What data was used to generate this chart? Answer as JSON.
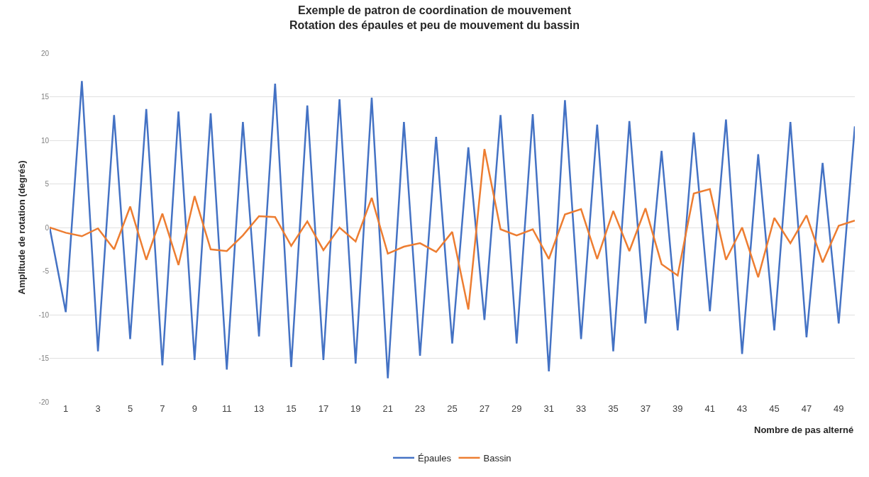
{
  "chart_data": {
    "type": "line",
    "title": "Exemple de patron de coordination de mouvement",
    "subtitle": "Rotation des épaules et peu de mouvement du bassin",
    "xlabel": "Nombre de pas alterné",
    "ylabel": "Amplitude de rotation (degrés)",
    "x": [
      0,
      1,
      2,
      3,
      4,
      5,
      6,
      7,
      8,
      9,
      10,
      11,
      12,
      13,
      14,
      15,
      16,
      17,
      18,
      19,
      20,
      21,
      22,
      23,
      24,
      25,
      26,
      27,
      28,
      29,
      30,
      31,
      32,
      33,
      34,
      35,
      36,
      37,
      38,
      39,
      40,
      41,
      42,
      43,
      44,
      45,
      46,
      47,
      48,
      49,
      50
    ],
    "xlim": [
      0,
      50
    ],
    "xticks": [
      1,
      3,
      5,
      7,
      9,
      11,
      13,
      15,
      17,
      19,
      21,
      23,
      25,
      27,
      29,
      31,
      33,
      35,
      37,
      39,
      41,
      43,
      45,
      47,
      49
    ],
    "series": [
      {
        "name": "Épaules",
        "color": "#4472c4",
        "values": [
          0,
          -9.7,
          16.8,
          -14.2,
          12.9,
          -12.8,
          13.6,
          -15.8,
          13.3,
          -15.2,
          13.1,
          -16.3,
          12.1,
          -12.5,
          16.5,
          -16.0,
          14.0,
          -15.2,
          14.7,
          -15.6,
          14.9,
          -17.3,
          12.1,
          -14.7,
          10.4,
          -13.3,
          9.2,
          -10.6,
          12.9,
          -13.3,
          13.0,
          -16.5,
          14.6,
          -12.8,
          11.8,
          -14.2,
          12.2,
          -11.0,
          8.8,
          -11.8,
          10.9,
          -9.6,
          12.4,
          -14.5,
          8.4,
          -11.8,
          12.1,
          -12.6,
          7.4,
          -11.0,
          11.6
        ]
      },
      {
        "name": "Bassin",
        "color": "#ed7d31",
        "values": [
          0,
          -0.6,
          -1.0,
          -0.1,
          -2.5,
          2.4,
          -3.7,
          1.6,
          -4.3,
          3.6,
          -2.5,
          -2.7,
          -0.9,
          1.3,
          1.2,
          -2.1,
          0.7,
          -2.6,
          0.0,
          -1.6,
          3.4,
          -3.0,
          -2.2,
          -1.8,
          -2.8,
          -0.5,
          -9.4,
          9.0,
          -0.2,
          -0.9,
          -0.2,
          -3.6,
          1.5,
          2.1,
          -3.6,
          1.9,
          -2.7,
          2.2,
          -4.2,
          -5.5,
          3.9,
          4.4,
          -3.7,
          0.0,
          -5.7,
          1.1,
          -1.8,
          1.4,
          -4.0,
          0.2,
          0.8
        ]
      }
    ],
    "ylim": [
      -20,
      20
    ],
    "yticks": [
      -20,
      -15,
      -10,
      -5,
      0,
      5,
      10,
      15,
      20
    ],
    "grid": "y",
    "legend": "bottom",
    "marker": "none",
    "line_style": "solid"
  }
}
